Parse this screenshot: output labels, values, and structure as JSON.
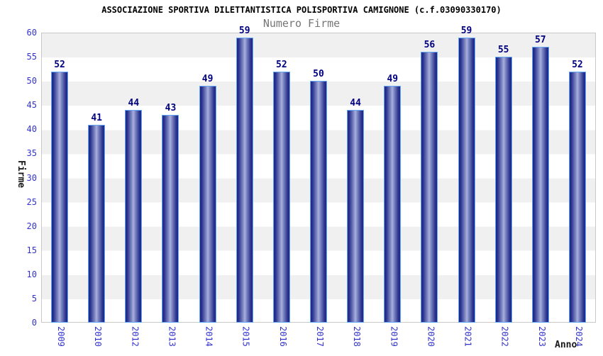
{
  "header": {
    "title": "ASSOCIAZIONE SPORTIVA DILETTANTISTICA POLISPORTIVA CAMIGNONE (c.f.03090330170)",
    "subtitle": "Numero Firme"
  },
  "chart_data": {
    "type": "bar",
    "title": "Numero Firme",
    "categories": [
      "2009",
      "2010",
      "2012",
      "2013",
      "2014",
      "2015",
      "2016",
      "2017",
      "2018",
      "2019",
      "2020",
      "2021",
      "2022",
      "2023",
      "2024"
    ],
    "values": [
      52,
      41,
      44,
      43,
      49,
      59,
      52,
      50,
      44,
      49,
      56,
      59,
      55,
      57,
      52
    ],
    "xlabel": "Anno",
    "ylabel": "Firme",
    "ylim": [
      0,
      60
    ],
    "ytick_step": 5,
    "bar_value_labels": true,
    "legend": "none",
    "grid": "alternating horizontal background bands every 5 units (gray/white), gray band at top (55-60)"
  },
  "colors": {
    "page_background": "#ffffff",
    "tick_label": "#3333cc",
    "value_label": "#000080",
    "title": "#000000",
    "subtitle": "#757575",
    "axis_title": "#1a1a1a",
    "plot_border": "#c9c9c9",
    "band_gray": "#f0f0f0",
    "band_white": "#ffffff",
    "bar_border": "#64a8f5",
    "bar_edge": "#1e2584",
    "bar_mid": "#a9b0dd"
  }
}
